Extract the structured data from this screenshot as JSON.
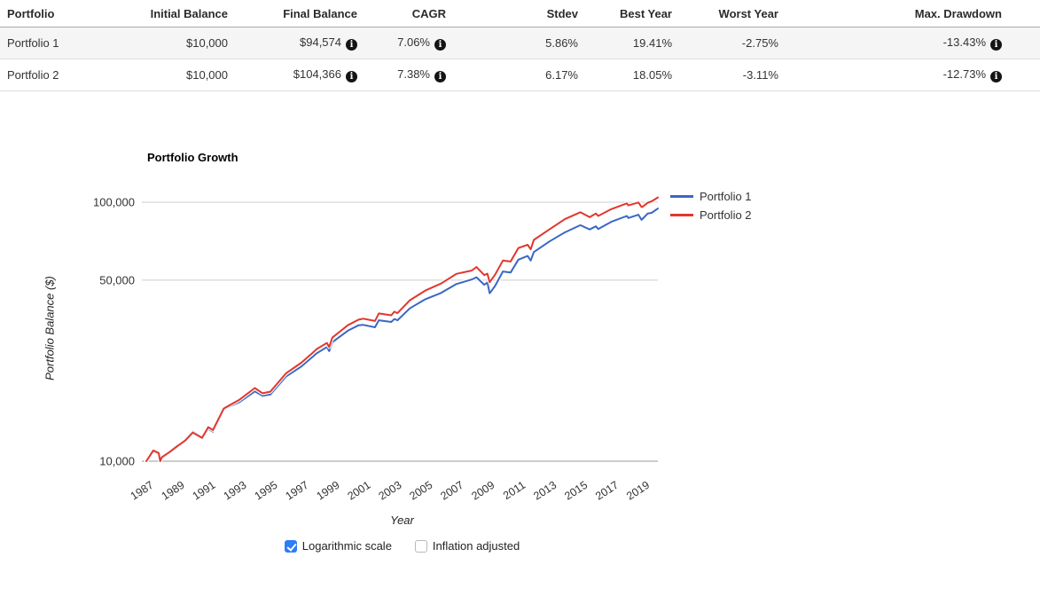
{
  "summary_table": {
    "columns": [
      "Portfolio",
      "Initial Balance",
      "Final Balance",
      "CAGR",
      "Stdev",
      "Best Year",
      "Worst Year",
      "Max. Drawdown"
    ],
    "rows": [
      {
        "portfolio": "Portfolio 1",
        "initial_balance": "$10,000",
        "final_balance": "$94,574",
        "cagr": "7.06%",
        "stdev": "5.86%",
        "best_year": "19.41%",
        "worst_year": "-2.75%",
        "max_drawdown": "-13.43%"
      },
      {
        "portfolio": "Portfolio 2",
        "initial_balance": "$10,000",
        "final_balance": "$104,366",
        "cagr": "7.38%",
        "stdev": "6.17%",
        "best_year": "18.05%",
        "worst_year": "-3.11%",
        "max_drawdown": "-12.73%"
      }
    ]
  },
  "chart_data": {
    "type": "line",
    "title": "Portfolio Growth",
    "xlabel": "Year",
    "ylabel": "Portfolio Balance ($)",
    "y_scale": "logarithmic",
    "grid": "horizontal",
    "legend_position": "top-right",
    "xlim": [
      1987,
      2020
    ],
    "ylim": [
      10000,
      110000
    ],
    "y_ticks": [
      10000,
      50000,
      100000
    ],
    "y_tick_labels": [
      "10,000",
      "50,000",
      "100,000"
    ],
    "x_ticks": [
      1987,
      1989,
      1991,
      1993,
      1995,
      1997,
      1999,
      2001,
      2003,
      2005,
      2007,
      2009,
      2011,
      2013,
      2015,
      2017,
      2019
    ],
    "x": [
      1987,
      1987.45,
      1987.8,
      1987.9,
      1988,
      1988.5,
      1989,
      1989.5,
      1990,
      1990.6,
      1991,
      1991.3,
      1992,
      1993,
      1994,
      1994.5,
      1995,
      1996,
      1997,
      1997.7,
      1998,
      1998.65,
      1998.8,
      1999,
      2000,
      2000.7,
      2001,
      2001.75,
      2002,
      2002.8,
      2003,
      2003.2,
      2004,
      2005,
      2006,
      2007,
      2008,
      2008.3,
      2008.8,
      2009,
      2009.15,
      2009.5,
      2010,
      2010.5,
      2011,
      2011.6,
      2011.8,
      2012,
      2013,
      2014,
      2015,
      2015.6,
      2016,
      2016.15,
      2017,
      2018,
      2018.1,
      2018.75,
      2018.95,
      2019,
      2019.35,
      2019.6,
      2020
    ],
    "series": [
      {
        "name": "Portfolio 1",
        "color": "#3A67C4",
        "values": [
          10000,
          10900,
          10650,
          10050,
          10300,
          10800,
          11330,
          12100,
          13030,
          12400,
          13300,
          13000,
          15880,
          16900,
          18600,
          17900,
          18090,
          21200,
          23200,
          25200,
          26100,
          27600,
          26600,
          28800,
          31900,
          33500,
          33600,
          32900,
          35000,
          34500,
          35400,
          35000,
          38900,
          42200,
          44600,
          48300,
          50300,
          51300,
          48000,
          48950,
          44500,
          47500,
          54000,
          53500,
          60000,
          62000,
          59500,
          64200,
          70500,
          76500,
          81500,
          78500,
          80700,
          78800,
          84000,
          88500,
          86900,
          89500,
          85500,
          86100,
          90500,
          91000,
          94574
        ]
      },
      {
        "name": "Portfolio 2",
        "color": "#E0372E",
        "values": [
          10000,
          11000,
          10750,
          10000,
          10350,
          10850,
          11440,
          12000,
          12900,
          12300,
          13540,
          13200,
          15980,
          17260,
          19160,
          18300,
          18560,
          21810,
          23990,
          26100,
          27110,
          28600,
          27600,
          30000,
          33500,
          35200,
          35500,
          34800,
          37200,
          36600,
          37800,
          37300,
          41800,
          45600,
          48500,
          52900,
          54500,
          56200,
          52300,
          53000,
          49100,
          52500,
          59500,
          59000,
          66500,
          68500,
          65800,
          71500,
          78500,
          86000,
          91500,
          87500,
          90500,
          88500,
          94000,
          99000,
          97200,
          99800,
          95800,
          95930,
          99500,
          100800,
          104366
        ]
      }
    ]
  },
  "controls": {
    "items": [
      {
        "label": "Logarithmic scale",
        "checked": true
      },
      {
        "label": "Inflation adjusted",
        "checked": false
      }
    ]
  },
  "colors": {
    "grid_line": "#cccccc",
    "axis_line": "#999999",
    "tick_text": "#333333",
    "row_stripe": "#f5f5f5",
    "checkbox_checked": "#2e7cf6"
  }
}
